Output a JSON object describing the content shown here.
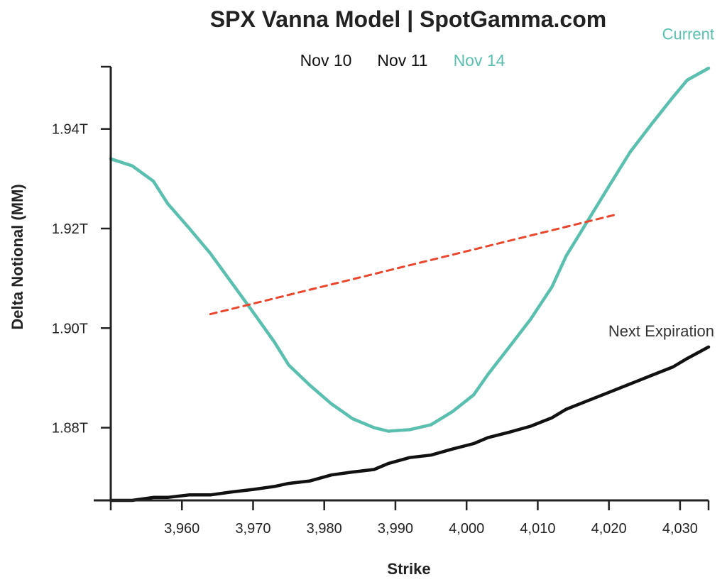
{
  "chart_data": {
    "type": "line",
    "title": "SPX Vanna Model | SpotGamma.com",
    "legend": [
      "Nov 10",
      "Nov 11",
      "Nov 14"
    ],
    "legend_colors": [
      "#111111",
      "#111111",
      "#5bbfb0"
    ],
    "legend_placement": "top-center",
    "xlabel": "Strike",
    "ylabel": "Delta Notional (MM)",
    "xlim": [
      3950,
      4034
    ],
    "ylim": [
      1.8654,
      1.9525
    ],
    "y_unit": "T",
    "xticks": [
      3960,
      3970,
      3980,
      3990,
      4000,
      4010,
      4020,
      4030
    ],
    "xtick_labels": [
      "3,960",
      "3,970",
      "3,980",
      "3,990",
      "4,000",
      "4,010",
      "4,020",
      "4,030"
    ],
    "yticks": [
      1.88,
      1.9,
      1.92,
      1.94
    ],
    "ytick_labels": [
      "1.88T",
      "1.90T",
      "1.92T",
      "1.94T"
    ],
    "grid": false,
    "series": [
      {
        "color": "#5bbfb0",
        "style": "solid",
        "x": [
          3950,
          3953,
          3956,
          3958,
          3961,
          3964,
          3967,
          3970,
          3973,
          3975,
          3978,
          3981,
          3984,
          3987,
          3989,
          3992,
          3995,
          3998,
          4001,
          4003,
          4006,
          4009,
          4012,
          4014,
          4017,
          4020,
          4023,
          4026,
          4029,
          4031,
          4034
        ],
        "values": [
          1.934,
          1.9326,
          1.9295,
          1.925,
          1.9201,
          1.915,
          1.9091,
          1.9032,
          1.8972,
          1.8926,
          1.8885,
          1.8848,
          1.8818,
          1.88,
          1.8793,
          1.8796,
          1.8806,
          1.8832,
          1.8866,
          1.8907,
          1.8962,
          1.9018,
          1.9083,
          1.9145,
          1.9215,
          1.9285,
          1.9354,
          1.941,
          1.9464,
          1.9498,
          1.9522
        ]
      },
      {
        "color": "#111111",
        "style": "solid",
        "x": [
          3950,
          3953,
          3956,
          3958,
          3961,
          3964,
          3967,
          3970,
          3973,
          3975,
          3978,
          3981,
          3984,
          3987,
          3989,
          3992,
          3995,
          3998,
          4001,
          4003,
          4006,
          4009,
          4012,
          4014,
          4017,
          4020,
          4023,
          4026,
          4029,
          4031,
          4034
        ],
        "values": [
          1.8654,
          1.8654,
          1.866,
          1.866,
          1.8665,
          1.8665,
          1.8671,
          1.8676,
          1.8682,
          1.8688,
          1.8693,
          1.8705,
          1.8711,
          1.8716,
          1.8728,
          1.874,
          1.8745,
          1.8757,
          1.8768,
          1.878,
          1.8791,
          1.8803,
          1.882,
          1.8837,
          1.8854,
          1.8871,
          1.8888,
          1.8905,
          1.8922,
          1.8939,
          1.8962
        ]
      },
      {
        "color": "#e8472e",
        "style": "dashed",
        "x": [
          3964,
          4021
        ],
        "values": [
          1.9028,
          1.9228
        ]
      }
    ],
    "annotations": [
      {
        "text": "Current",
        "color": "#5bbfb0",
        "x": 4034,
        "y": 1.958,
        "anchor": "end"
      },
      {
        "text": "Next Expiration",
        "color": "#333333",
        "x": 4034,
        "y": 1.8983,
        "anchor": "end"
      }
    ]
  }
}
